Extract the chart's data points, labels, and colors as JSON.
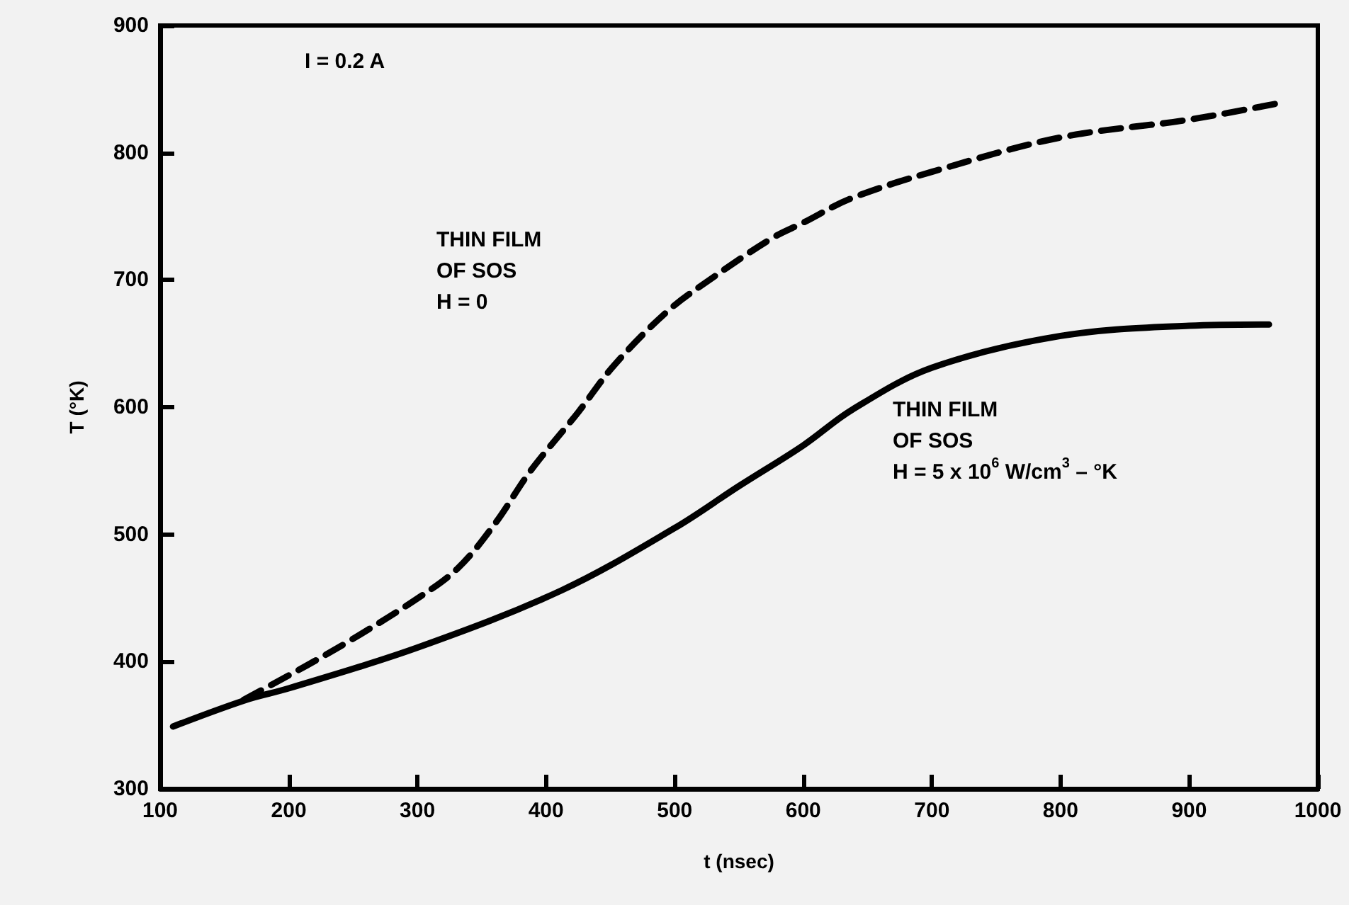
{
  "chart_data": {
    "type": "line",
    "xlabel": "t (nsec)",
    "ylabel": "T (°K)",
    "xlim": [
      100,
      1000
    ],
    "xticks": [
      100,
      200,
      300,
      400,
      500,
      600,
      700,
      800,
      900,
      1000
    ],
    "ylim": [
      300,
      900
    ],
    "yticks": [
      300,
      400,
      500,
      600,
      700,
      800,
      900
    ],
    "grid": false,
    "marker": "none",
    "series": [
      {
        "color": "#000000",
        "line_style": "dashed",
        "x": [
          165,
          214,
          250,
          296,
          331,
          360,
          388,
          425,
          453,
          494,
          527,
          576,
          600,
          637,
          700,
          800,
          900,
          970
        ],
        "values": [
          370,
          397,
          418,
          447,
          473,
          508,
          550,
          596,
          633,
          675,
          700,
          733,
          745,
          764,
          785,
          812,
          826,
          839
        ]
      },
      {
        "color": "#000000",
        "line_style": "solid",
        "x": [
          110,
          167,
          200,
          300,
          412,
          500,
          550,
          600,
          638,
          700,
          800,
          900,
          962
        ],
        "values": [
          349,
          370,
          379,
          411,
          456,
          505,
          538,
          570,
          598,
          631,
          656,
          664,
          665
        ]
      }
    ],
    "annotations": [
      "I = 0.2 A",
      "THIN FILM\nOF SOS\nH = 0",
      "THIN FILM\nOF SOS\nH = 5 x 10$^{6}$ W/cm$^{3}$ – °K"
    ]
  }
}
